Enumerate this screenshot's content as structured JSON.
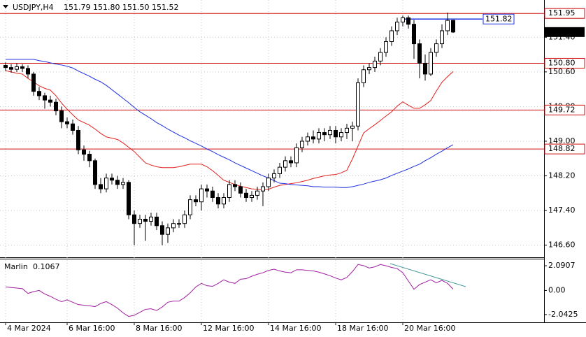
{
  "chart_data": [
    {
      "type": "candlestick",
      "title": "USDJPY,H4",
      "subtitle": "151.79 151.80 151.50 151.52",
      "categories": [
        "4 Mar 2024",
        null,
        null,
        null,
        null,
        null,
        null,
        null,
        null,
        null,
        null,
        "6 Mar 16:00",
        null,
        null,
        null,
        null,
        null,
        null,
        null,
        null,
        null,
        null,
        null,
        "8 Mar 16:00",
        null,
        null,
        null,
        null,
        null,
        null,
        null,
        null,
        null,
        null,
        null,
        "12 Mar 16:00",
        null,
        null,
        null,
        null,
        null,
        null,
        null,
        null,
        null,
        null,
        null,
        "14 Mar 16:00",
        null,
        null,
        null,
        null,
        null,
        null,
        null,
        null,
        null,
        null,
        null,
        "18 Mar 16:00",
        null,
        null,
        null,
        null,
        null,
        null,
        null,
        null,
        null,
        null,
        null,
        "20 Mar 16:00",
        null,
        null,
        null,
        null,
        null,
        null,
        null,
        null,
        null
      ],
      "open": [
        150.75,
        150.7,
        150.66,
        150.72,
        150.68,
        150.55,
        150.15,
        150.05,
        149.95,
        149.9,
        149.7,
        149.45,
        149.4,
        149.25,
        148.8,
        148.7,
        148.55,
        148.0,
        147.9,
        148.15,
        148.1,
        148.0,
        148.05,
        147.3,
        147.1,
        147.2,
        147.15,
        147.25,
        147.05,
        146.85,
        147.0,
        147.1,
        147.1,
        147.3,
        147.65,
        147.6,
        147.9,
        147.85,
        147.7,
        147.55,
        147.7,
        148.0,
        147.95,
        147.8,
        147.7,
        147.75,
        147.85,
        147.95,
        148.15,
        148.25,
        148.4,
        148.55,
        148.5,
        148.85,
        149.0,
        149.1,
        149.05,
        149.2,
        149.15,
        149.25,
        149.1,
        149.2,
        149.3,
        149.35,
        150.35,
        150.65,
        150.7,
        150.85,
        151.05,
        151.3,
        151.55,
        151.75,
        151.85,
        151.7,
        151.25,
        150.8,
        150.55,
        151.05,
        151.25,
        151.55,
        151.79
      ],
      "high": [
        150.82,
        150.78,
        150.8,
        150.78,
        150.75,
        150.6,
        150.25,
        150.12,
        150.05,
        149.98,
        149.8,
        149.55,
        149.5,
        149.35,
        148.9,
        148.78,
        148.6,
        148.15,
        148.25,
        148.25,
        148.2,
        148.15,
        148.1,
        147.4,
        147.3,
        147.3,
        147.35,
        147.35,
        147.15,
        147.1,
        147.2,
        147.2,
        147.4,
        147.75,
        147.75,
        148.0,
        148.0,
        147.95,
        147.8,
        147.8,
        148.1,
        148.1,
        148.05,
        147.9,
        147.85,
        147.95,
        148.05,
        148.25,
        148.35,
        148.5,
        148.65,
        148.65,
        148.95,
        149.1,
        149.2,
        149.25,
        149.3,
        149.3,
        149.35,
        149.35,
        149.3,
        149.4,
        149.45,
        150.45,
        150.75,
        150.8,
        150.95,
        151.15,
        151.4,
        151.65,
        151.85,
        151.9,
        151.9,
        151.8,
        151.35,
        151.0,
        151.15,
        151.35,
        151.7,
        151.97,
        151.8
      ],
      "low": [
        150.62,
        150.58,
        150.6,
        150.6,
        150.45,
        150.05,
        149.95,
        149.75,
        149.8,
        149.6,
        149.3,
        149.3,
        149.15,
        148.7,
        148.55,
        148.4,
        147.9,
        147.8,
        147.82,
        148.0,
        147.9,
        147.9,
        147.2,
        146.6,
        147.0,
        146.7,
        147.05,
        146.95,
        146.6,
        146.65,
        146.9,
        147.0,
        147.0,
        147.2,
        147.5,
        147.4,
        147.7,
        147.6,
        147.45,
        147.45,
        147.6,
        147.85,
        147.7,
        147.6,
        147.6,
        147.65,
        147.5,
        147.85,
        148.05,
        148.15,
        148.3,
        148.4,
        148.4,
        148.75,
        148.9,
        148.95,
        148.95,
        149.0,
        149.05,
        148.95,
        149.0,
        149.05,
        149.0,
        149.25,
        150.25,
        150.55,
        150.6,
        150.75,
        150.95,
        151.2,
        151.45,
        151.65,
        151.6,
        150.9,
        150.45,
        150.4,
        150.5,
        150.95,
        151.15,
        151.45,
        151.5
      ],
      "close": [
        150.7,
        150.66,
        150.72,
        150.68,
        150.55,
        150.15,
        150.05,
        149.95,
        149.9,
        149.7,
        149.45,
        149.4,
        149.25,
        148.8,
        148.7,
        148.55,
        148.0,
        147.9,
        148.15,
        148.1,
        148.0,
        148.05,
        147.3,
        147.1,
        147.2,
        147.15,
        147.25,
        147.05,
        146.85,
        147.0,
        147.1,
        147.1,
        147.3,
        147.65,
        147.6,
        147.9,
        147.85,
        147.7,
        147.55,
        147.7,
        148.0,
        147.95,
        147.8,
        147.7,
        147.75,
        147.85,
        147.95,
        148.15,
        148.25,
        148.4,
        148.55,
        148.5,
        148.85,
        149.0,
        149.1,
        149.05,
        149.2,
        149.15,
        149.25,
        149.1,
        149.2,
        149.3,
        149.35,
        150.35,
        150.65,
        150.7,
        150.85,
        151.05,
        151.3,
        151.55,
        151.75,
        151.85,
        151.7,
        151.25,
        150.8,
        150.55,
        151.05,
        151.25,
        151.55,
        151.79,
        151.52
      ],
      "lines": [
        {
          "color": "#e0201c",
          "values": [
            150.63,
            150.6,
            150.57,
            150.55,
            150.45,
            150.37,
            150.28,
            150.22,
            150.18,
            150.05,
            149.88,
            149.74,
            149.61,
            149.49,
            149.43,
            149.37,
            149.28,
            149.18,
            149.1,
            149.07,
            149.04,
            148.96,
            148.86,
            148.76,
            148.63,
            148.5,
            148.45,
            148.41,
            148.39,
            148.39,
            148.39,
            148.41,
            148.44,
            148.47,
            148.47,
            148.47,
            148.41,
            148.32,
            148.21,
            148.1,
            148.05,
            148.0,
            147.96,
            147.93,
            147.9,
            147.89,
            147.88,
            147.89,
            147.94,
            147.98,
            148.0,
            148.02,
            148.04,
            148.07,
            148.1,
            148.14,
            148.17,
            148.2,
            148.22,
            148.23,
            148.27,
            148.33,
            148.59,
            148.89,
            149.19,
            149.29,
            149.38,
            149.48,
            149.58,
            149.68,
            149.81,
            149.91,
            149.83,
            149.76,
            149.76,
            149.84,
            149.94,
            150.16,
            150.36,
            150.49,
            150.61
          ]
        },
        {
          "color": "#1c2fe0",
          "values": [
            150.89,
            150.89,
            150.89,
            150.89,
            150.89,
            150.89,
            150.86,
            150.84,
            150.81,
            150.78,
            150.76,
            150.73,
            150.69,
            150.62,
            150.56,
            150.5,
            150.43,
            150.37,
            150.29,
            150.19,
            150.09,
            149.99,
            149.89,
            149.78,
            149.68,
            149.6,
            149.52,
            149.43,
            149.36,
            149.28,
            149.21,
            149.14,
            149.08,
            149.01,
            148.95,
            148.89,
            148.82,
            148.76,
            148.69,
            148.63,
            148.57,
            148.5,
            148.44,
            148.38,
            148.32,
            148.26,
            148.2,
            148.15,
            148.09,
            148.03,
            148.02,
            148.0,
            147.99,
            147.98,
            147.97,
            147.95,
            147.95,
            147.94,
            147.94,
            147.94,
            147.93,
            147.93,
            147.95,
            147.98,
            148.01,
            148.05,
            148.08,
            148.11,
            148.15,
            148.21,
            148.26,
            148.31,
            148.36,
            148.42,
            148.47,
            148.55,
            148.62,
            148.7,
            148.77,
            148.85,
            148.92
          ]
        }
      ],
      "ylim": [
        146.32,
        152.26
      ],
      "yticks": [
        {
          "value": 151.4,
          "label": "151.40"
        },
        {
          "value": 150.6,
          "label": "150.60"
        },
        {
          "value": 149.8,
          "label": "149.80"
        },
        {
          "value": 149,
          "label": "149.00"
        },
        {
          "value": 148.2,
          "label": "148.20"
        },
        {
          "value": 147.4,
          "label": "147.40"
        },
        {
          "value": 146.6,
          "label": "146.60"
        }
      ],
      "levels": [
        151.95,
        {
          "value": 150.8,
          "label": "150.80"
        },
        149.72,
        148.82
      ],
      "level_color": "#d01010",
      "marked_level": 151.82,
      "marked_level_color": "#1c2fe0",
      "last_price": 151.52,
      "grid": true
    },
    {
      "type": "line",
      "title": "Marlin",
      "color": "#a01ea0",
      "values": [
        0.3,
        0.25,
        0.2,
        0.15,
        -0.25,
        -0.1,
        0.0,
        -0.3,
        -0.5,
        -0.75,
        -0.95,
        -0.8,
        -1.0,
        -1.2,
        -1.25,
        -1.3,
        -1.37,
        -1.1,
        -0.95,
        -1.2,
        -1.5,
        -1.9,
        -2.2,
        -2.1,
        -1.85,
        -1.6,
        -1.55,
        -1.7,
        -1.4,
        -1.0,
        -0.9,
        -0.9,
        -0.6,
        -0.2,
        0.3,
        0.6,
        0.4,
        0.35,
        0.6,
        0.9,
        0.7,
        0.6,
        0.95,
        1.0,
        1.2,
        1.37,
        1.5,
        1.7,
        1.8,
        1.65,
        1.55,
        1.5,
        1.75,
        1.75,
        1.7,
        1.65,
        1.55,
        1.4,
        1.25,
        1.05,
        0.9,
        1.1,
        1.6,
        2.2,
        2.1,
        1.9,
        2.0,
        2.2,
        2.09,
        1.95,
        1.85,
        1.5,
        0.8,
        0.1,
        0.5,
        0.7,
        0.9,
        0.65,
        0.85,
        0.6,
        0.1067
      ],
      "ylim": [
        -2.64,
        2.63
      ],
      "yticks": [
        2.0907,
        {
          "value": 0,
          "label": "0.00"
        },
        -2.0425
      ]
    }
  ]
}
